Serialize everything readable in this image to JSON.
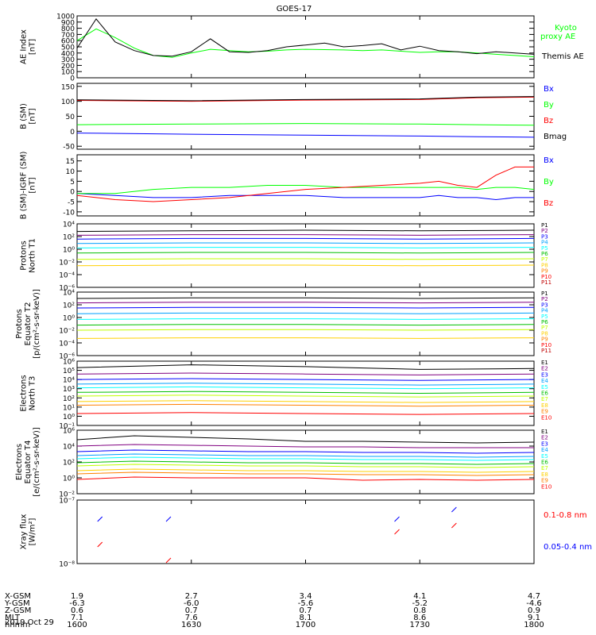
{
  "title": "GOES-17",
  "date": "2019 Oct 29",
  "chart_data": [
    {
      "type": "line",
      "ylabel": "AE Index\n[nT]",
      "yticks": [
        "0",
        "100",
        "200",
        "300",
        "400",
        "500",
        "600",
        "700",
        "800",
        "900",
        "1000"
      ],
      "ylim": [
        0,
        1000
      ],
      "x": [
        1600,
        1605,
        1610,
        1615,
        1620,
        1625,
        1630,
        1635,
        1640,
        1645,
        1650,
        1655,
        1700,
        1705,
        1710,
        1715,
        1720,
        1725,
        1730,
        1735,
        1740,
        1745,
        1750,
        1755,
        1800
      ],
      "legend_placement": "right",
      "series": [
        {
          "name": "Kyoto proxy AE",
          "color": "#00ff00",
          "values": [
            600,
            790,
            650,
            480,
            360,
            330,
            400,
            460,
            440,
            420,
            430,
            450,
            460,
            455,
            450,
            440,
            450,
            430,
            410,
            420,
            420,
            400,
            380,
            360,
            340
          ]
        },
        {
          "name": "Themis AE",
          "color": "#000000",
          "values": [
            480,
            950,
            580,
            440,
            360,
            350,
            420,
            630,
            420,
            410,
            440,
            500,
            530,
            560,
            500,
            520,
            550,
            450,
            510,
            440,
            420,
            390,
            420,
            400,
            380
          ]
        }
      ]
    },
    {
      "type": "line",
      "ylabel": "B (SM)\n[nT]",
      "yticks": [
        "-50",
        "0",
        "50",
        "100",
        "150"
      ],
      "ylim": [
        -60,
        160
      ],
      "x": [
        1600,
        1630,
        1700,
        1730,
        1745,
        1800
      ],
      "legend_placement": "right",
      "series": [
        {
          "name": "Bx",
          "color": "#0000ff",
          "values": [
            -6,
            -10,
            -13,
            -16,
            -18,
            -20
          ]
        },
        {
          "name": "By",
          "color": "#00ff00",
          "values": [
            22,
            24,
            26,
            24,
            22,
            20
          ]
        },
        {
          "name": "Bz",
          "color": "#ff0000",
          "values": [
            103,
            100,
            104,
            106,
            112,
            114
          ]
        },
        {
          "name": "Bmag",
          "color": "#000000",
          "values": [
            105,
            102,
            106,
            108,
            114,
            116
          ]
        }
      ]
    },
    {
      "type": "line",
      "ylabel": "B (SM)-IGRF (SM)\n[nT]",
      "yticks": [
        "-10",
        "-5",
        "0",
        "5",
        "10",
        "15"
      ],
      "ylim": [
        -12,
        18
      ],
      "x": [
        1600,
        1610,
        1620,
        1630,
        1640,
        1650,
        1700,
        1710,
        1720,
        1730,
        1735,
        1740,
        1745,
        1750,
        1755,
        1800
      ],
      "legend_placement": "right",
      "series": [
        {
          "name": "Bx",
          "color": "#0000ff",
          "values": [
            -1,
            -2,
            -3,
            -3,
            -2,
            -2,
            -2,
            -3,
            -3,
            -3,
            -2,
            -3,
            -3,
            -4,
            -3,
            -3
          ]
        },
        {
          "name": "By",
          "color": "#00ff00",
          "values": [
            -1,
            -1,
            1,
            2,
            2,
            3,
            3,
            2,
            2,
            2,
            2,
            2,
            1,
            2,
            2,
            1
          ]
        },
        {
          "name": "Bz",
          "color": "#ff0000",
          "values": [
            -2,
            -4,
            -5,
            -4,
            -3,
            -1,
            1,
            2,
            3,
            4,
            5,
            3,
            2,
            8,
            12,
            12
          ]
        }
      ]
    },
    {
      "type": "line",
      "ylabel": "Protons\nNorth T1",
      "ylog": true,
      "yticks": [
        "10⁻⁶",
        "10⁻⁴",
        "10⁻²",
        "10⁰",
        "10²",
        "10⁴"
      ],
      "ylim": [
        -6,
        4
      ],
      "x": [
        1600,
        1630,
        1700,
        1730,
        1800
      ],
      "legend_placement": "right",
      "series": [
        {
          "name": "P1",
          "color": "#000000",
          "values": [
            2.8,
            2.9,
            3.0,
            2.9,
            3.0
          ]
        },
        {
          "name": "P2",
          "color": "#800080",
          "values": [
            2.2,
            2.3,
            2.3,
            2.2,
            2.3
          ]
        },
        {
          "name": "P3",
          "color": "#0000ff",
          "values": [
            1.6,
            1.7,
            1.7,
            1.6,
            1.7
          ]
        },
        {
          "name": "P4",
          "color": "#00a0ff",
          "values": [
            0.9,
            1.0,
            1.0,
            0.9,
            1.0
          ]
        },
        {
          "name": "P5",
          "color": "#00ffff",
          "values": [
            0.2,
            0.3,
            0.3,
            0.2,
            0.3
          ]
        },
        {
          "name": "P6",
          "color": "#00c000",
          "values": [
            -0.6,
            -0.5,
            -0.5,
            -0.6,
            -0.5
          ]
        },
        {
          "name": "P7",
          "color": "#c0ff00",
          "values": [
            -1.6,
            -1.5,
            -1.5,
            -1.6,
            -1.5
          ]
        },
        {
          "name": "P8",
          "color": "#ffd000",
          "values": [
            -2.6,
            -2.5,
            -2.5,
            -2.6,
            -2.5
          ]
        },
        {
          "name": "P9",
          "color": "#ff8000",
          "values": [
            null,
            null,
            null,
            null,
            null
          ]
        },
        {
          "name": "P10",
          "color": "#ff0000",
          "values": [
            null,
            null,
            null,
            null,
            null
          ]
        },
        {
          "name": "P11",
          "color": "#c00000",
          "values": [
            null,
            null,
            null,
            null,
            null
          ]
        }
      ]
    },
    {
      "type": "line",
      "ylabel": "Protons\nEquator T2\n[p/(cm²-s-sr-keV)]",
      "ylog": true,
      "yticks": [
        "10⁻⁶",
        "10⁻⁴",
        "10⁻²",
        "10⁰",
        "10²",
        "10⁴"
      ],
      "ylim": [
        -6,
        4
      ],
      "x": [
        1600,
        1630,
        1700,
        1730,
        1800
      ],
      "legend_placement": "right",
      "series": [
        {
          "name": "P1",
          "color": "#000000",
          "values": [
            3.0,
            3.1,
            3.1,
            3.0,
            3.1
          ]
        },
        {
          "name": "P2",
          "color": "#800080",
          "values": [
            2.3,
            2.4,
            2.4,
            2.3,
            2.4
          ]
        },
        {
          "name": "P3",
          "color": "#0000ff",
          "values": [
            1.5,
            1.6,
            1.6,
            1.5,
            1.6
          ]
        },
        {
          "name": "P4",
          "color": "#00a0ff",
          "values": [
            0.6,
            0.7,
            0.7,
            0.6,
            0.7
          ]
        },
        {
          "name": "P5",
          "color": "#00ffff",
          "values": [
            -0.3,
            -0.2,
            -0.2,
            -0.3,
            -0.2
          ]
        },
        {
          "name": "P6",
          "color": "#00c000",
          "values": [
            -1.2,
            -1.1,
            -1.1,
            -1.2,
            -1.1
          ]
        },
        {
          "name": "P7",
          "color": "#c0ff00",
          "values": [
            -2.0,
            -1.9,
            -1.9,
            -2.0,
            -1.9
          ]
        },
        {
          "name": "P8",
          "color": "#ffd000",
          "values": [
            -3.3,
            -3.2,
            -3.2,
            -3.3,
            -3.2
          ]
        },
        {
          "name": "P9",
          "color": "#ff8000",
          "values": [
            null,
            null,
            null,
            null,
            null
          ]
        },
        {
          "name": "P10",
          "color": "#ff0000",
          "values": [
            null,
            null,
            null,
            null,
            null
          ]
        },
        {
          "name": "P11",
          "color": "#c00000",
          "values": [
            null,
            null,
            null,
            null,
            null
          ]
        }
      ]
    },
    {
      "type": "line",
      "ylabel": "Electrons\nNorth T3",
      "ylog": true,
      "yticks": [
        "10⁻¹",
        "10⁰",
        "10¹",
        "10²",
        "10³",
        "10⁴",
        "10⁵",
        "10⁶"
      ],
      "ylim": [
        -1,
        6
      ],
      "x": [
        1600,
        1630,
        1700,
        1730,
        1800
      ],
      "legend_placement": "right",
      "series": [
        {
          "name": "E1",
          "color": "#000000",
          "values": [
            5.3,
            5.6,
            5.4,
            5.1,
            5.2
          ]
        },
        {
          "name": "E2",
          "color": "#800080",
          "values": [
            4.6,
            4.7,
            4.6,
            4.5,
            4.6
          ]
        },
        {
          "name": "E3",
          "color": "#0000ff",
          "values": [
            4.0,
            4.1,
            4.0,
            3.9,
            4.0
          ]
        },
        {
          "name": "E4",
          "color": "#00a0ff",
          "values": [
            3.5,
            3.6,
            3.5,
            3.4,
            3.5
          ]
        },
        {
          "name": "E5",
          "color": "#00ffff",
          "values": [
            3.1,
            3.2,
            3.1,
            3.0,
            3.1
          ]
        },
        {
          "name": "E6",
          "color": "#00c000",
          "values": [
            2.6,
            2.7,
            2.6,
            2.5,
            2.6
          ]
        },
        {
          "name": "E7",
          "color": "#c0ff00",
          "values": [
            2.2,
            2.3,
            2.2,
            2.1,
            2.2
          ]
        },
        {
          "name": "E8",
          "color": "#ffd000",
          "values": [
            1.6,
            1.7,
            1.6,
            1.5,
            1.6
          ]
        },
        {
          "name": "E9",
          "color": "#ff8000",
          "values": [
            1.2,
            1.3,
            1.2,
            1.1,
            1.2
          ]
        },
        {
          "name": "E10",
          "color": "#ff0000",
          "values": [
            0.3,
            0.4,
            0.3,
            0.2,
            0.3
          ]
        }
      ]
    },
    {
      "type": "line",
      "ylabel": "Electrons\nEquator T4\n[e/(cm²-s-sr-keV)]",
      "ylog": true,
      "yticks": [
        "10⁻²",
        "10⁰",
        "10²",
        "10⁴",
        "10⁶"
      ],
      "ylim": [
        -2,
        6
      ],
      "x": [
        1600,
        1615,
        1630,
        1645,
        1700,
        1715,
        1730,
        1745,
        1800
      ],
      "legend_placement": "right",
      "series": [
        {
          "name": "E1",
          "color": "#000000",
          "values": [
            4.8,
            5.3,
            5.1,
            4.9,
            4.6,
            4.6,
            4.5,
            4.4,
            4.5
          ]
        },
        {
          "name": "E2",
          "color": "#800080",
          "values": [
            4.0,
            4.2,
            4.1,
            4.0,
            3.9,
            3.9,
            3.8,
            3.8,
            3.8
          ]
        },
        {
          "name": "E3",
          "color": "#0000ff",
          "values": [
            3.3,
            3.5,
            3.4,
            3.3,
            3.3,
            3.2,
            3.2,
            3.1,
            3.2
          ]
        },
        {
          "name": "E4",
          "color": "#00a0ff",
          "values": [
            2.8,
            3.0,
            2.9,
            2.8,
            2.8,
            2.7,
            2.7,
            2.6,
            2.7
          ]
        },
        {
          "name": "E5",
          "color": "#00ffff",
          "values": [
            2.4,
            2.6,
            2.5,
            2.4,
            2.4,
            2.3,
            2.3,
            2.2,
            2.3
          ]
        },
        {
          "name": "E6",
          "color": "#00c000",
          "values": [
            1.9,
            2.1,
            2.0,
            1.9,
            1.9,
            1.8,
            1.8,
            1.7,
            1.8
          ]
        },
        {
          "name": "E7",
          "color": "#c0ff00",
          "values": [
            1.5,
            1.7,
            1.6,
            1.5,
            1.5,
            1.4,
            1.4,
            1.3,
            1.4
          ]
        },
        {
          "name": "E8",
          "color": "#ffd000",
          "values": [
            0.9,
            1.1,
            1.0,
            0.9,
            0.9,
            0.8,
            0.8,
            0.7,
            0.8
          ]
        },
        {
          "name": "E9",
          "color": "#ff8000",
          "values": [
            0.5,
            0.7,
            0.6,
            0.5,
            0.5,
            0.4,
            0.4,
            0.3,
            0.4
          ]
        },
        {
          "name": "E10",
          "color": "#ff0000",
          "values": [
            -0.2,
            0.1,
            0.0,
            0.0,
            0.0,
            -0.3,
            -0.2,
            -0.3,
            -0.2
          ]
        }
      ]
    },
    {
      "type": "scatter",
      "ylabel": "Xray flux\n[W/m²]",
      "ylog": true,
      "yticks": [
        "10⁻⁸",
        "10⁻⁷"
      ],
      "ylim": [
        -8,
        -7
      ],
      "legend_placement": "right",
      "series": [
        {
          "name": "0.1-0.8 nm",
          "color": "#ff0000",
          "x": [
            1606,
            1624,
            1684,
            1739
          ],
          "values": [
            -7.7,
            -7.95,
            -7.5,
            -7.4
          ]
        },
        {
          "name": "0.05-0.4 nm",
          "color": "#0000ff",
          "x": [
            1606,
            1624,
            1684,
            1739
          ],
          "values": [
            -7.3,
            -7.3,
            -7.3,
            -7.15
          ]
        }
      ]
    }
  ],
  "ephemeris": {
    "rows": [
      {
        "label": "X-GSM",
        "values": [
          "1.9",
          "2.7",
          "3.4",
          "4.1",
          "4.7"
        ]
      },
      {
        "label": "Y-GSM",
        "values": [
          "-6.3",
          "-6.0",
          "-5.6",
          "-5.2",
          "-4.6"
        ]
      },
      {
        "label": "Z-GSM",
        "values": [
          "0.6",
          "0.7",
          "0.7",
          "0.8",
          "0.9"
        ]
      },
      {
        "label": "MLT",
        "values": [
          "7.1",
          "7.6",
          "8.1",
          "8.6",
          "9.1"
        ]
      },
      {
        "label": "hhmm",
        "values": [
          "1600",
          "1630",
          "1700",
          "1730",
          "1800"
        ]
      }
    ]
  }
}
